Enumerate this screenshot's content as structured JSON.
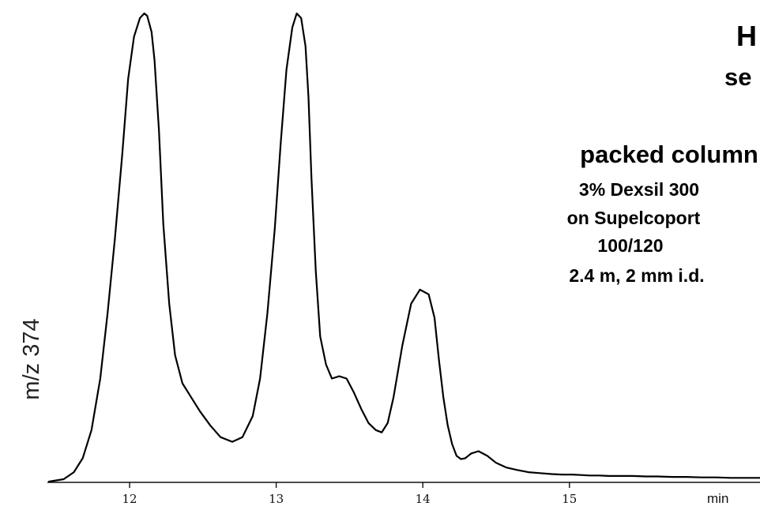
{
  "chart_data": {
    "type": "line",
    "ylabel": "m/z  374",
    "x_unit_label": "min",
    "x_ticks": [
      "12",
      "13",
      "14",
      "15"
    ],
    "x_tick_values": [
      12,
      13,
      14,
      15
    ],
    "xlim": [
      11.45,
      16.3
    ],
    "ylim": [
      0,
      100
    ],
    "grid": false,
    "legend": "none",
    "line_color": "#000000",
    "series": [
      {
        "x": [
          11.45,
          11.55,
          11.62,
          11.68,
          11.74,
          11.8,
          11.85,
          11.9,
          11.95,
          11.99,
          12.03,
          12.07,
          12.1,
          12.12,
          12.15,
          12.17,
          12.2,
          12.23,
          12.27,
          12.31,
          12.36,
          12.42,
          12.48,
          12.55,
          12.62,
          12.7,
          12.77,
          12.84,
          12.89,
          12.94,
          12.99,
          13.03,
          13.07,
          13.11,
          13.14,
          13.17,
          13.2,
          13.22,
          13.24,
          13.27,
          13.3,
          13.34,
          13.38,
          13.43,
          13.48,
          13.53,
          13.58,
          13.63,
          13.68,
          13.72,
          13.76,
          13.8,
          13.86,
          13.92,
          13.98,
          14.04,
          14.08,
          14.11,
          14.14,
          14.17,
          14.2,
          14.23,
          14.26,
          14.29,
          14.33,
          14.38,
          14.44,
          14.5,
          14.57,
          14.64,
          14.72,
          14.8,
          14.88,
          14.95,
          15.02,
          15.08,
          15.14,
          15.2,
          15.27,
          15.35,
          15.43,
          15.52,
          15.6,
          15.7,
          15.8,
          15.9,
          16.0,
          16.1,
          16.2,
          16.3
        ],
        "y": [
          0,
          0.5,
          2,
          5,
          11,
          22,
          36,
          52,
          70,
          86,
          95,
          99,
          100,
          99.5,
          96,
          90,
          75,
          55,
          38,
          27,
          21,
          18,
          15,
          12,
          9.5,
          8.5,
          9.5,
          14,
          22,
          36,
          54,
          72,
          88,
          97,
          100,
          99,
          93,
          82,
          65,
          45,
          31,
          25,
          22,
          22.5,
          22,
          19,
          15.5,
          12.5,
          11,
          10.5,
          12.5,
          18,
          29,
          38,
          41,
          40,
          35,
          26,
          18,
          12,
          8,
          5.5,
          4.8,
          5,
          6,
          6.5,
          5.5,
          4,
          3,
          2.5,
          2,
          1.8,
          1.6,
          1.5,
          1.5,
          1.4,
          1.3,
          1.3,
          1.2,
          1.2,
          1.2,
          1.1,
          1.1,
          1.0,
          1.0,
          0.9,
          0.9,
          0.8,
          0.8,
          0.8
        ]
      }
    ]
  },
  "annotations": {
    "title_fragment_1": "H",
    "title_fragment_2": "se",
    "column_heading": "packed column",
    "column_line_1": "3% Dexsil 300",
    "column_line_2": "on Supelcoport",
    "column_line_3": "100/120",
    "column_line_4": "2.4 m, 2 mm i.d."
  }
}
